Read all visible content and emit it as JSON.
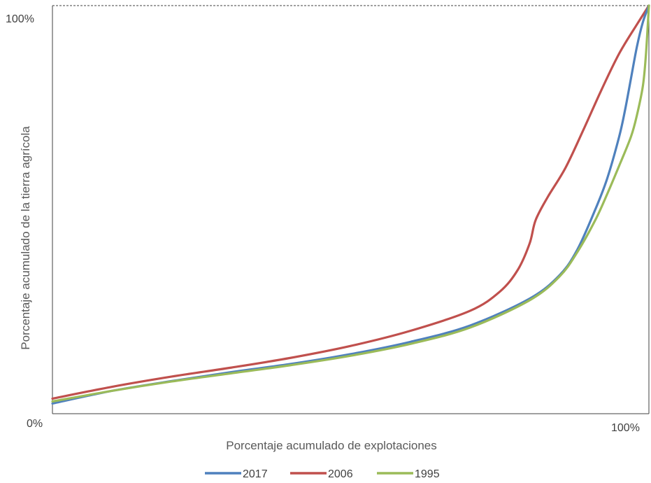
{
  "chart_data": {
    "type": "line",
    "title": "",
    "xlabel": "Porcentaje acumulado de explotaciones",
    "ylabel": "Porcentaje acumulado  de la tierra agrícola",
    "x_tick_labels": {
      "max": "100%"
    },
    "y_tick_labels": {
      "min": "0%",
      "max": "100%"
    },
    "xlim": [
      0,
      100
    ],
    "ylim": [
      0,
      100
    ],
    "grid": false,
    "legend_position": "bottom",
    "series": [
      {
        "name": "2017",
        "color": "#4f81bd",
        "points": [
          [
            0,
            2.5
          ],
          [
            10,
            5.6
          ],
          [
            20,
            8.0
          ],
          [
            30,
            10.2
          ],
          [
            40,
            12.2
          ],
          [
            50,
            14.6
          ],
          [
            60,
            17.6
          ],
          [
            70,
            21.6
          ],
          [
            80,
            28.2
          ],
          [
            85,
            33.9
          ],
          [
            88,
            40.2
          ],
          [
            91,
            50.0
          ],
          [
            93,
            57.6
          ],
          [
            95,
            67.8
          ],
          [
            96,
            74.4
          ],
          [
            97,
            82.2
          ],
          [
            98,
            90.0
          ],
          [
            99,
            96.0
          ],
          [
            100,
            100
          ]
        ]
      },
      {
        "name": "2006",
        "color": "#c0504d",
        "points": [
          [
            0,
            3.7
          ],
          [
            10,
            6.6
          ],
          [
            20,
            9.1
          ],
          [
            30,
            11.3
          ],
          [
            40,
            13.7
          ],
          [
            50,
            16.6
          ],
          [
            60,
            20.3
          ],
          [
            70,
            25.2
          ],
          [
            75,
            29.9
          ],
          [
            78,
            35.2
          ],
          [
            80,
            41.7
          ],
          [
            81,
            47.4
          ],
          [
            83,
            53.0
          ],
          [
            86,
            60.2
          ],
          [
            89,
            69.5
          ],
          [
            92,
            79.2
          ],
          [
            95,
            88.2
          ],
          [
            98,
            95.4
          ],
          [
            100,
            100
          ]
        ]
      },
      {
        "name": "1995",
        "color": "#9bbb59",
        "points": [
          [
            0,
            3.0
          ],
          [
            10,
            5.6
          ],
          [
            20,
            7.9
          ],
          [
            30,
            9.9
          ],
          [
            40,
            11.9
          ],
          [
            50,
            14.2
          ],
          [
            60,
            17.1
          ],
          [
            70,
            21.1
          ],
          [
            80,
            27.8
          ],
          [
            85,
            33.6
          ],
          [
            88,
            39.6
          ],
          [
            91,
            47.4
          ],
          [
            93,
            53.8
          ],
          [
            95,
            60.7
          ],
          [
            97,
            67.9
          ],
          [
            98,
            73.2
          ],
          [
            99,
            80.4
          ],
          [
            99.5,
            88.0
          ],
          [
            100,
            100
          ]
        ]
      }
    ]
  }
}
